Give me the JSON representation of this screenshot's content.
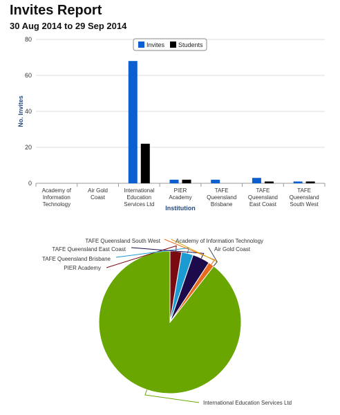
{
  "header": {
    "title": "Invites Report",
    "date_range": "30 Aug 2014 to 29 Sep 2014"
  },
  "chart_data": [
    {
      "type": "bar",
      "xlabel": "Institution",
      "ylabel": "No. Invites",
      "ylim": [
        0,
        80
      ],
      "yticks": [
        0,
        20,
        40,
        60,
        80
      ],
      "grid": true,
      "legend": "top-center",
      "categories": [
        [
          "Academy of",
          "Information",
          "Technology"
        ],
        [
          "Air Gold",
          "Coast"
        ],
        [
          "International",
          "Education",
          "Services Ltd"
        ],
        [
          "PIER",
          "Academy"
        ],
        [
          "TAFE",
          "Queensland",
          "Brisbane"
        ],
        [
          "TAFE",
          "Queensland",
          "East Coast"
        ],
        [
          "TAFE",
          "Queensland",
          "South West"
        ]
      ],
      "series": [
        {
          "name": "Invites",
          "color": "#0b5fd1",
          "values": [
            0,
            0,
            68,
            2,
            2,
            3,
            1
          ]
        },
        {
          "name": "Students",
          "color": "#000000",
          "values": [
            0,
            0,
            22,
            2,
            0,
            1,
            1
          ]
        }
      ]
    },
    {
      "type": "pie",
      "slices": [
        {
          "label": "International Education Services Ltd",
          "value": 68,
          "color": "#6aa600"
        },
        {
          "label": "PIER Academy",
          "value": 2,
          "color": "#7a0a12"
        },
        {
          "label": "TAFE Queensland Brisbane",
          "value": 2,
          "color": "#1b9bd1"
        },
        {
          "label": "TAFE Queensland East Coast",
          "value": 3,
          "color": "#1c0a4a"
        },
        {
          "label": "TAFE Queensland South West",
          "value": 1,
          "color": "#e86a1c"
        },
        {
          "label": "Academy of Information Technology",
          "value": 0,
          "color": "#d9a400"
        },
        {
          "label": "Air Gold Coast",
          "value": 0,
          "color": "#444444"
        }
      ]
    }
  ]
}
